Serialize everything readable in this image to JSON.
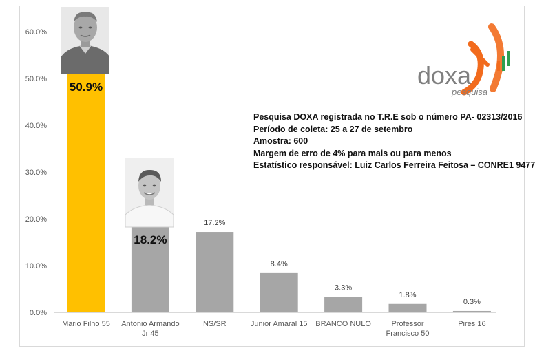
{
  "chart_data": {
    "type": "bar",
    "categories": [
      "Mario Filho 55",
      "Antonio Armando Jr 45",
      "NS/SR",
      "Junior Amaral 15",
      "BRANCO NULO",
      "Professor Francisco 50",
      "Pires 16"
    ],
    "category_lines": [
      [
        "Mario Filho 55"
      ],
      [
        "Antonio Armando",
        "Jr 45"
      ],
      [
        "NS/SR"
      ],
      [
        "Junior Amaral 15"
      ],
      [
        "BRANCO NULO"
      ],
      [
        "Professor",
        "Francisco 50"
      ],
      [
        "Pires 16"
      ]
    ],
    "values": [
      50.9,
      18.2,
      17.2,
      8.4,
      3.3,
      1.8,
      0.3
    ],
    "value_labels": [
      "50.9%",
      "18.2%",
      "17.2%",
      "8.4%",
      "3.3%",
      "1.8%",
      "0.3%"
    ],
    "ylim": [
      0,
      60
    ],
    "yticks": [
      "0.0%",
      "10.0%",
      "20.0%",
      "30.0%",
      "40.0%",
      "50.0%",
      "60.0%"
    ],
    "colors": {
      "highlight": "#FFC000",
      "default": "#A6A6A6"
    },
    "grid": false,
    "legend": "none"
  },
  "info": {
    "lines": [
      "Pesquisa DOXA registrada no T.R.E sob o número PA- 02313/2016",
      "Período de coleta: 25 a 27 de setembro",
      "Amostra: 600",
      "Margem de erro de 4% para mais ou para menos",
      "Estatístico responsável: Luiz Carlos Ferreira Feitosa – CONRE1 9477"
    ]
  },
  "logo": {
    "brand": "doxa",
    "sub": "pesquisa",
    "accent": "#F26B1D",
    "bar_color": "#2E9E4F"
  }
}
